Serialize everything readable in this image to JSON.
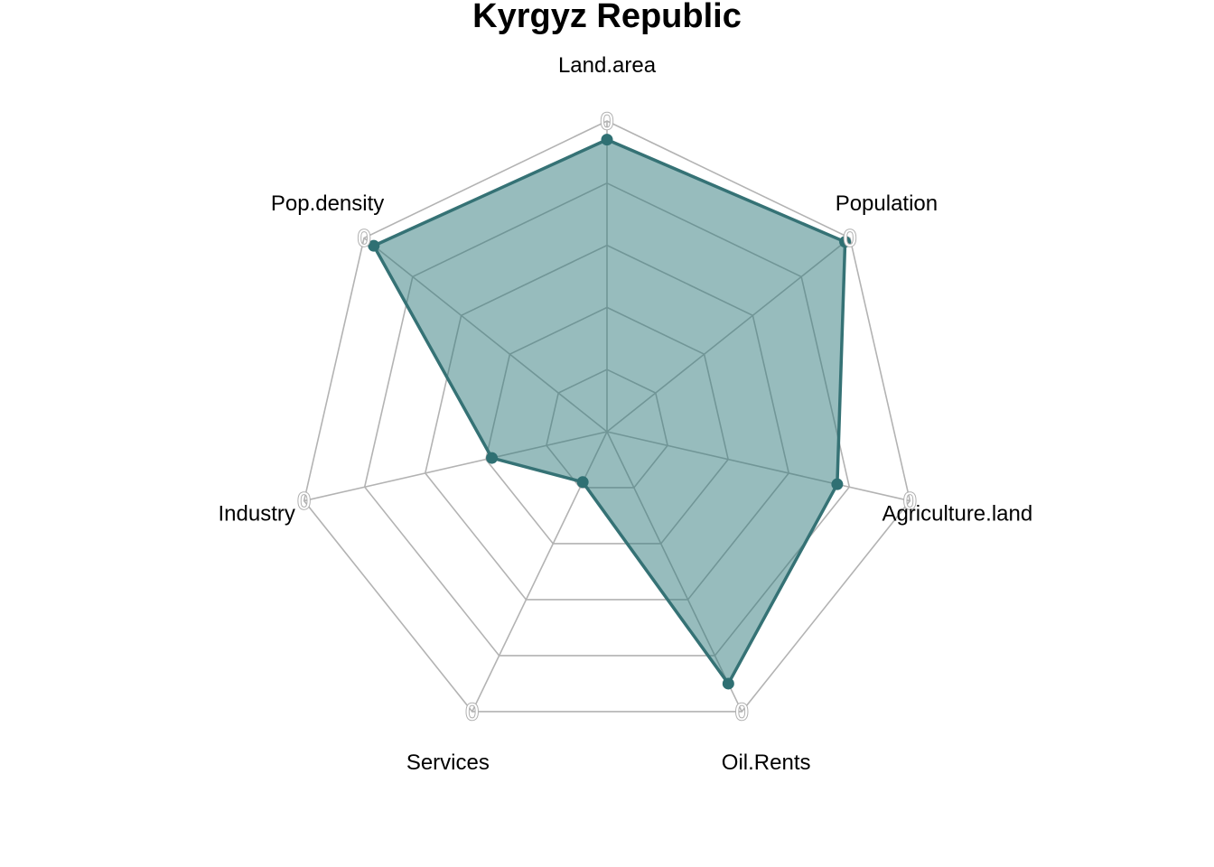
{
  "chart_data": {
    "type": "radar",
    "title": "Kyrgyz Republic",
    "axes": [
      "Land.area",
      "Population",
      "Agriculture.land",
      "Oil.Rents",
      "Services",
      "Industry",
      "Pop.density"
    ],
    "axis_tick_label": "0",
    "rmax": 1,
    "grid_levels": 5,
    "series": [
      {
        "values": [
          0.94,
          0.98,
          0.76,
          0.9,
          0.18,
          0.38,
          0.96
        ]
      }
    ],
    "colors": {
      "fill": "#2f7a7c",
      "fill_opacity": 0.5,
      "line": "#357275",
      "point": "#2f7073",
      "grid": "#b3b3b3"
    }
  }
}
